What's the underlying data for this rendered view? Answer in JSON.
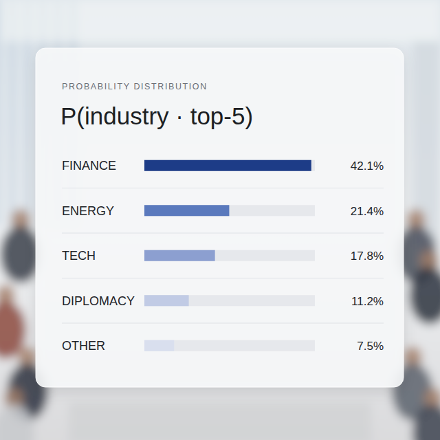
{
  "chart_data": {
    "type": "bar",
    "orientation": "horizontal",
    "subtitle": "PROBABILITY DISTRIBUTION",
    "title": "P(industry · top-5)",
    "categories": [
      "FINANCE",
      "ENERGY",
      "TECH",
      "DIPLOMACY",
      "OTHER"
    ],
    "values": [
      42.1,
      21.4,
      17.8,
      11.2,
      7.5
    ],
    "value_labels": [
      "42.1%",
      "21.4%",
      "17.8%",
      "11.2%",
      "7.5%"
    ],
    "colors": [
      "#1d3c87",
      "#5a79bd",
      "#8c9fd0",
      "#c1cbe5",
      "#d9dfee"
    ],
    "xlim": [
      0,
      43
    ],
    "data_labels": true,
    "tick_labels": "y",
    "grid": false
  }
}
